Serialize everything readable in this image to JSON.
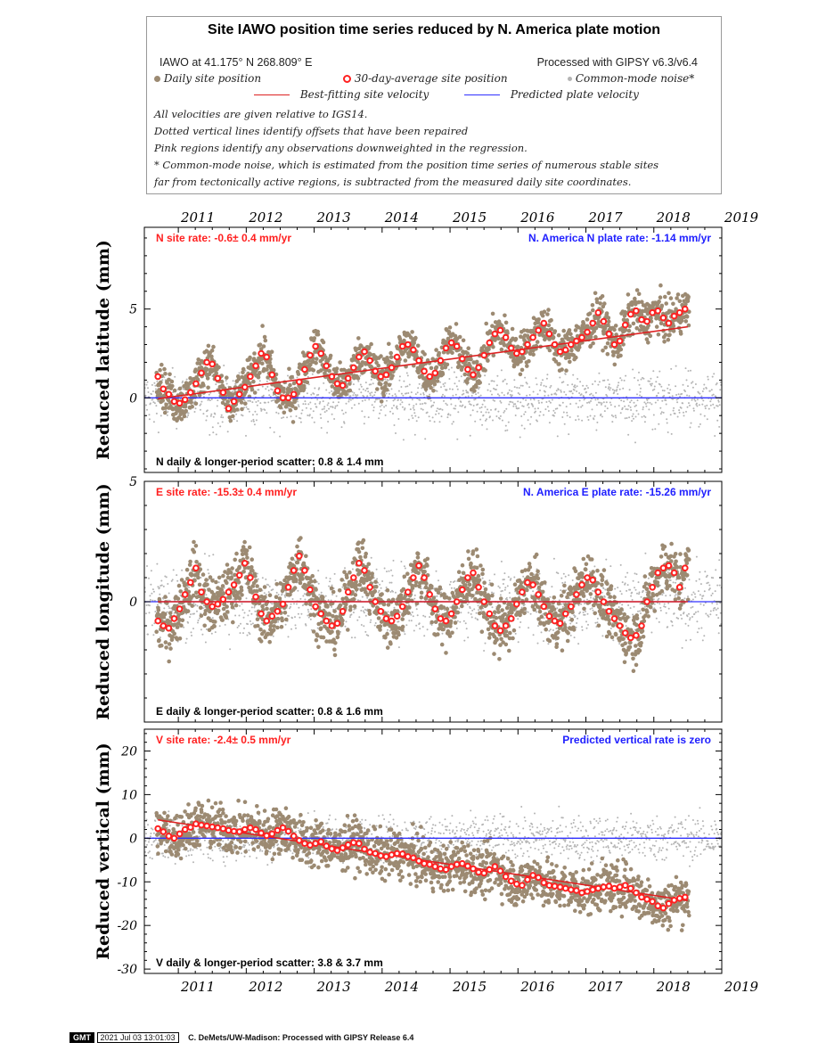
{
  "legend": {
    "title": "Site IAWO position time series reduced by N. America plate motion",
    "site_location": "IAWO at 41.175° N 268.809° E",
    "processed": "Processed with GIPSY v6.3/v6.4",
    "daily_label": "Daily site position",
    "avg_label": "30-day-average site position",
    "cm_label": "Common-mode noise*",
    "best_fit_label": "Best-fitting site velocity",
    "predicted_label": "Predicted plate velocity",
    "notes": [
      "All velocities are given relative to IGS14.",
      "Dotted vertical lines identify offsets that have been repaired",
      "Pink regions identify any observations downweighted in the regression.",
      "* Common-mode noise, which is estimated from the position time series of numerous stable sites",
      "far from tectonically active regions, is subtracted from the measured daily site coordinates."
    ]
  },
  "footer": {
    "logo": "GMT",
    "timestamp": "2021 Jul 03 13:01:03",
    "credit": "C. DeMets/UW-Madison: Processed with GIPSY Release 6.4"
  },
  "colors": {
    "daily": "#9c8a72",
    "average": "#ff2020",
    "common_mode": "#b4b4b4",
    "best_fit": "#dd2222",
    "predicted": "#3030ff"
  },
  "chart_data": [
    {
      "type": "scatter",
      "component": "N",
      "ylabel": "Reduced latitude (mm)",
      "xlim": [
        2010.5,
        2019
      ],
      "ylim": [
        -4.2,
        9.6
      ],
      "yticks": [
        0,
        5
      ],
      "x_ticks": [
        "2011",
        "2012",
        "2013",
        "2014",
        "2015",
        "2016",
        "2017",
        "2018",
        "2019"
      ],
      "site_rate": "N site rate:  -0.6± 0.4 mm/yr",
      "plate_rate": "N. America N plate rate: -1.14 mm/yr",
      "scatter_text": "N daily & longer-period scatter:   0.8 &   1.4 mm",
      "best_fit": {
        "x": [
          2010.7,
          2018.5
        ],
        "y": [
          -0.05,
          4.0
        ]
      },
      "predicted_y": 0,
      "averages": {
        "x": [
          2010.7,
          2010.78,
          2010.86,
          2010.94,
          2011.02,
          2011.1,
          2011.18,
          2011.26,
          2011.34,
          2011.42,
          2011.5,
          2011.58,
          2011.66,
          2011.74,
          2011.82,
          2011.9,
          2011.98,
          2012.06,
          2012.14,
          2012.22,
          2012.3,
          2012.38,
          2012.46,
          2012.54,
          2012.62,
          2012.7,
          2012.78,
          2012.86,
          2012.94,
          2013.02,
          2013.1,
          2013.18,
          2013.26,
          2013.34,
          2013.42,
          2013.5,
          2013.58,
          2013.66,
          2013.74,
          2013.82,
          2013.9,
          2013.98,
          2014.06,
          2014.14,
          2014.22,
          2014.3,
          2014.38,
          2014.46,
          2014.54,
          2014.62,
          2014.7,
          2014.78,
          2014.86,
          2014.94,
          2015.02,
          2015.1,
          2015.18,
          2015.26,
          2015.34,
          2015.42,
          2015.5,
          2015.58,
          2015.66,
          2015.74,
          2015.82,
          2015.9,
          2015.98,
          2016.06,
          2016.14,
          2016.22,
          2016.3,
          2016.38,
          2016.46,
          2016.54,
          2016.62,
          2016.7,
          2016.78,
          2016.86,
          2016.94,
          2017.02,
          2017.1,
          2017.18,
          2017.26,
          2017.34,
          2017.42,
          2017.5,
          2017.58,
          2017.66,
          2017.74,
          2017.82,
          2017.9,
          2017.98,
          2018.06,
          2018.14,
          2018.22,
          2018.3,
          2018.38,
          2018.46
        ],
        "y": [
          1.2,
          0.5,
          0.2,
          -0.2,
          -0.3,
          -0.1,
          0.3,
          0.8,
          1.4,
          2.0,
          1.9,
          1.1,
          0.3,
          -0.6,
          -0.2,
          0.2,
          0.6,
          1.2,
          1.8,
          2.5,
          2.3,
          1.3,
          0.4,
          0.0,
          0.0,
          0.2,
          0.9,
          1.6,
          2.4,
          2.9,
          2.5,
          1.8,
          1.2,
          0.8,
          0.7,
          1.1,
          1.7,
          2.3,
          2.6,
          2.1,
          1.5,
          1.2,
          1.3,
          1.7,
          2.3,
          2.9,
          3.0,
          2.7,
          2.1,
          1.5,
          1.2,
          1.4,
          2.1,
          2.8,
          3.1,
          2.9,
          2.2,
          1.6,
          1.3,
          1.7,
          2.4,
          3.1,
          3.6,
          3.8,
          3.4,
          2.8,
          2.5,
          2.6,
          3.0,
          3.4,
          3.8,
          4.2,
          3.6,
          3.0,
          2.6,
          2.7,
          3.0,
          3.2,
          3.4,
          3.7,
          4.2,
          4.8,
          4.3,
          3.6,
          3.0,
          3.2,
          4.1,
          4.7,
          4.9,
          4.4,
          4.3,
          4.8,
          4.9,
          4.5,
          4.2,
          4.6,
          4.8,
          5.0
        ]
      },
      "seasonal_amplitude": 1.1,
      "daily_noise": 0.8
    },
    {
      "type": "scatter",
      "component": "E",
      "ylabel": "Reduced longitude (mm)",
      "xlim": [
        2010.5,
        2019
      ],
      "ylim": [
        -5.0,
        5.0
      ],
      "yticks": [
        0,
        5
      ],
      "x_ticks": [
        "2011",
        "2012",
        "2013",
        "2014",
        "2015",
        "2016",
        "2017",
        "2018",
        "2019"
      ],
      "site_rate": "E site rate:  -15.3± 0.4 mm/yr",
      "plate_rate": "N. America E plate rate: -15.26 mm/yr",
      "scatter_text": "E daily & longer-period scatter:   0.8 &   1.6 mm",
      "best_fit": {
        "x": [
          2010.7,
          2018.5
        ],
        "y": [
          0.0,
          0.0
        ]
      },
      "predicted_y": 0,
      "averages": {
        "x": [
          2010.7,
          2010.78,
          2010.86,
          2010.94,
          2011.02,
          2011.1,
          2011.18,
          2011.26,
          2011.34,
          2011.42,
          2011.5,
          2011.58,
          2011.66,
          2011.74,
          2011.82,
          2011.9,
          2011.98,
          2012.06,
          2012.14,
          2012.22,
          2012.3,
          2012.38,
          2012.46,
          2012.54,
          2012.62,
          2012.7,
          2012.78,
          2012.86,
          2012.94,
          2013.02,
          2013.1,
          2013.18,
          2013.26,
          2013.34,
          2013.42,
          2013.5,
          2013.58,
          2013.66,
          2013.74,
          2013.82,
          2013.9,
          2013.98,
          2014.06,
          2014.14,
          2014.22,
          2014.3,
          2014.38,
          2014.46,
          2014.54,
          2014.62,
          2014.7,
          2014.78,
          2014.86,
          2014.94,
          2015.02,
          2015.1,
          2015.18,
          2015.26,
          2015.34,
          2015.42,
          2015.5,
          2015.58,
          2015.66,
          2015.74,
          2015.82,
          2015.9,
          2015.98,
          2016.06,
          2016.14,
          2016.22,
          2016.3,
          2016.38,
          2016.46,
          2016.54,
          2016.62,
          2016.7,
          2016.78,
          2016.86,
          2016.94,
          2017.02,
          2017.1,
          2017.18,
          2017.26,
          2017.34,
          2017.42,
          2017.5,
          2017.58,
          2017.66,
          2017.74,
          2017.82,
          2017.9,
          2017.98,
          2018.06,
          2018.14,
          2018.22,
          2018.3,
          2018.38,
          2018.46
        ],
        "y": [
          -0.8,
          -1.0,
          -1.1,
          -0.7,
          -0.3,
          0.3,
          0.8,
          1.4,
          0.4,
          0.0,
          -0.2,
          -0.1,
          0.1,
          0.4,
          0.7,
          1.1,
          1.6,
          1.0,
          0.2,
          -0.5,
          -0.8,
          -0.6,
          -0.4,
          -0.1,
          0.6,
          1.3,
          1.9,
          1.3,
          0.5,
          -0.2,
          -0.5,
          -0.8,
          -1.0,
          -0.9,
          -0.4,
          0.4,
          1.0,
          1.6,
          1.3,
          0.6,
          0.0,
          -0.4,
          -0.7,
          -0.8,
          -0.6,
          -0.2,
          0.4,
          1.0,
          1.5,
          1.0,
          0.3,
          -0.3,
          -0.7,
          -0.8,
          -0.5,
          0.0,
          0.5,
          1.0,
          1.2,
          0.6,
          0.0,
          -0.5,
          -1.0,
          -1.2,
          -1.0,
          -0.7,
          -0.1,
          0.4,
          0.8,
          0.7,
          0.3,
          -0.2,
          -0.6,
          -0.8,
          -0.9,
          -0.5,
          -0.2,
          0.3,
          0.7,
          1.0,
          0.9,
          0.4,
          0.0,
          -0.4,
          -0.7,
          -1.0,
          -1.3,
          -1.5,
          -1.4,
          -1.0,
          0.0,
          0.6,
          1.2,
          1.4,
          1.5,
          1.2,
          0.6,
          1.4
        ]
      },
      "seasonal_amplitude": 1.0,
      "daily_noise": 0.8
    },
    {
      "type": "scatter",
      "component": "V",
      "ylabel": "Reduced vertical (mm)",
      "xlim": [
        2010.5,
        2019
      ],
      "ylim": [
        -31,
        25
      ],
      "yticks": [
        -30,
        -20,
        -10,
        0,
        10,
        20
      ],
      "x_ticks": [
        "2011",
        "2012",
        "2013",
        "2014",
        "2015",
        "2016",
        "2017",
        "2018",
        "2019"
      ],
      "site_rate": "V site rate:  -2.4± 0.5 mm/yr",
      "plate_rate": "Predicted vertical rate is zero",
      "scatter_text": "V daily & longer-period scatter:   3.8 &   3.7 mm",
      "best_fit": {
        "x": [
          2010.7,
          2018.5
        ],
        "y": [
          4.2,
          -14.3
        ]
      },
      "predicted_y": 0,
      "averages": {
        "x": [
          2010.7,
          2010.78,
          2010.86,
          2010.94,
          2011.02,
          2011.1,
          2011.18,
          2011.26,
          2011.34,
          2011.42,
          2011.5,
          2011.58,
          2011.66,
          2011.74,
          2011.82,
          2011.9,
          2011.98,
          2012.06,
          2012.14,
          2012.22,
          2012.3,
          2012.38,
          2012.46,
          2012.54,
          2012.62,
          2012.7,
          2012.78,
          2012.86,
          2012.94,
          2013.02,
          2013.1,
          2013.18,
          2013.26,
          2013.34,
          2013.42,
          2013.5,
          2013.58,
          2013.66,
          2013.74,
          2013.82,
          2013.9,
          2013.98,
          2014.06,
          2014.14,
          2014.22,
          2014.3,
          2014.38,
          2014.46,
          2014.54,
          2014.62,
          2014.7,
          2014.78,
          2014.86,
          2014.94,
          2015.02,
          2015.1,
          2015.18,
          2015.26,
          2015.34,
          2015.42,
          2015.5,
          2015.58,
          2015.66,
          2015.74,
          2015.82,
          2015.9,
          2015.98,
          2016.06,
          2016.14,
          2016.22,
          2016.3,
          2016.38,
          2016.46,
          2016.54,
          2016.62,
          2016.7,
          2016.78,
          2016.86,
          2016.94,
          2017.02,
          2017.1,
          2017.18,
          2017.26,
          2017.34,
          2017.42,
          2017.5,
          2017.58,
          2017.66,
          2017.74,
          2017.82,
          2017.9,
          2017.98,
          2018.06,
          2018.14,
          2018.22,
          2018.3,
          2018.38,
          2018.46
        ],
        "y": [
          2.2,
          1.5,
          0.5,
          0.0,
          1.0,
          2.0,
          2.5,
          3.3,
          3.0,
          2.8,
          2.6,
          2.4,
          2.2,
          1.8,
          1.6,
          1.5,
          2.0,
          2.4,
          2.0,
          1.2,
          0.6,
          1.0,
          1.8,
          2.4,
          1.6,
          0.5,
          -0.5,
          -1.2,
          -1.6,
          -1.2,
          -0.8,
          -1.8,
          -2.4,
          -2.8,
          -2.2,
          -1.5,
          -1.0,
          -1.2,
          -2.5,
          -3.2,
          -3.5,
          -4.0,
          -4.2,
          -3.8,
          -3.5,
          -3.6,
          -4.2,
          -4.5,
          -5.2,
          -5.8,
          -6.0,
          -6.5,
          -7.0,
          -7.2,
          -6.5,
          -6.0,
          -5.8,
          -6.4,
          -7.0,
          -7.8,
          -8.0,
          -7.2,
          -6.5,
          -7.5,
          -8.8,
          -9.8,
          -10.5,
          -10.8,
          -9.5,
          -8.5,
          -9.0,
          -10.2,
          -10.8,
          -11.0,
          -11.2,
          -11.5,
          -11.8,
          -12.0,
          -12.5,
          -12.2,
          -11.8,
          -11.5,
          -11.2,
          -11.0,
          -11.5,
          -11.2,
          -10.8,
          -11.5,
          -12.5,
          -13.5,
          -14.0,
          -14.5,
          -15.5,
          -16.0,
          -15.0,
          -14.2,
          -13.8,
          -13.5
        ]
      },
      "seasonal_amplitude": 1.2,
      "daily_noise": 3.8
    }
  ]
}
